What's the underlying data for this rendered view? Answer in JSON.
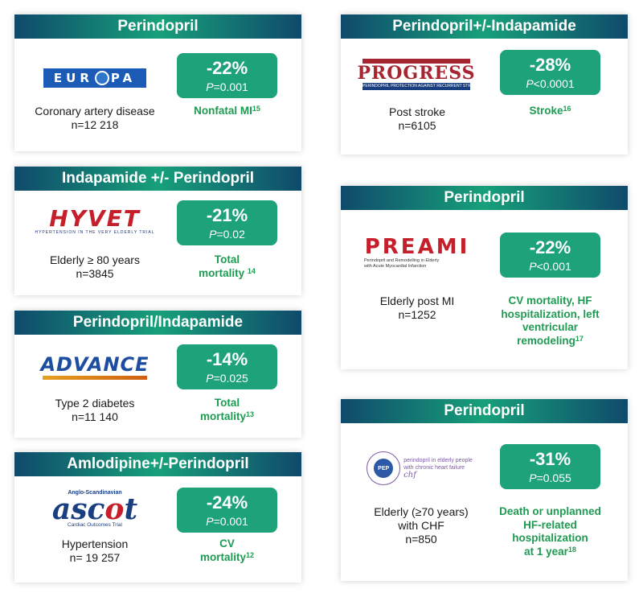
{
  "trials": [
    {
      "header": "Perindopril",
      "logo": {
        "name": "europa-logo",
        "text": "EUROPA"
      },
      "population": "Coronary artery disease",
      "n": "n=12 218",
      "reduction": "-22%",
      "p_label": "P",
      "p_value": "=0.001",
      "outcome_lines": [
        "Nonfatal MI"
      ],
      "ref": "15"
    },
    {
      "header": "Indapamide +/- Perindopril",
      "logo": {
        "name": "hyvet-logo",
        "text": "HYVET",
        "subtext": "HYPERTENSION IN THE VERY ELDERLY TRIAL"
      },
      "population": "Elderly ≥ 80 years",
      "n": "n=3845",
      "reduction": "-21%",
      "p_label": "P",
      "p_value": "=0.02",
      "outcome_lines": [
        "Total",
        "mortality"
      ],
      "ref": "14"
    },
    {
      "header": "Perindopril/Indapamide",
      "logo": {
        "name": "advance-logo",
        "text": "ADVANCE"
      },
      "population": "Type 2 diabetes",
      "n": "n=11 140",
      "reduction": "-14%",
      "p_label": "P",
      "p_value": "=0.025",
      "outcome_lines": [
        "Total",
        "mortality"
      ],
      "ref": "13"
    },
    {
      "header": "Amlodipine+/-Perindopril",
      "logo": {
        "name": "ascot-logo",
        "text_a": "asc",
        "text_o": "o",
        "text_b": "t",
        "top": "Anglo-Scandinavian",
        "sub": "Cardiac Outcomes Trial"
      },
      "population": "Hypertension",
      "n": "n= 19 257",
      "reduction": "-24%",
      "p_label": "P",
      "p_value": "=0.001",
      "outcome_lines": [
        "CV",
        "mortality"
      ],
      "ref": "12"
    },
    {
      "header": "Perindopril+/-Indapamide",
      "logo": {
        "name": "progress-logo",
        "text": "PROGRESS",
        "subtext": "PERINDOPRIL PROTECTION AGAINST RECURRENT STROKE STUDY"
      },
      "population": "Post stroke",
      "n": "n=6105",
      "reduction": "-28%",
      "p_label": "P",
      "p_value": "<0.0001",
      "outcome_lines": [
        "Stroke"
      ],
      "ref": "16"
    },
    {
      "header": "Perindopril",
      "logo": {
        "name": "preami-logo",
        "text": "PREAMI",
        "sub1": "Perindopril and Remodelling in Elderly",
        "sub2": "with Acute Myocardial Infarction"
      },
      "population": "Elderly post MI",
      "n": "n=1252",
      "reduction": "-22%",
      "p_label": "P",
      "p_value": "<0.001",
      "outcome_lines": [
        "CV mortality, HF",
        "hospitalization, left",
        "ventricular",
        "remodeling"
      ],
      "ref": "17"
    },
    {
      "header": "Perindopril",
      "logo": {
        "name": "pep-chf-logo",
        "inner": "PEP",
        "line1": "perindopril in elderly people",
        "line2": "with chronic heart failure",
        "chf": "chf"
      },
      "population": "Elderly (≥70 years)",
      "population2": "with CHF",
      "n": "n=850",
      "reduction": "-31%",
      "p_label": "P",
      "p_value": "=0.055",
      "outcome_lines": [
        "Death or unplanned",
        "HF-related",
        "hospitalization",
        "at 1 year"
      ],
      "ref": "18"
    }
  ],
  "colors": {
    "badge": "#1ea27a",
    "outcome": "#1e9b52",
    "header_dark": "#0f4a6b",
    "header_mid": "#17a07a"
  }
}
